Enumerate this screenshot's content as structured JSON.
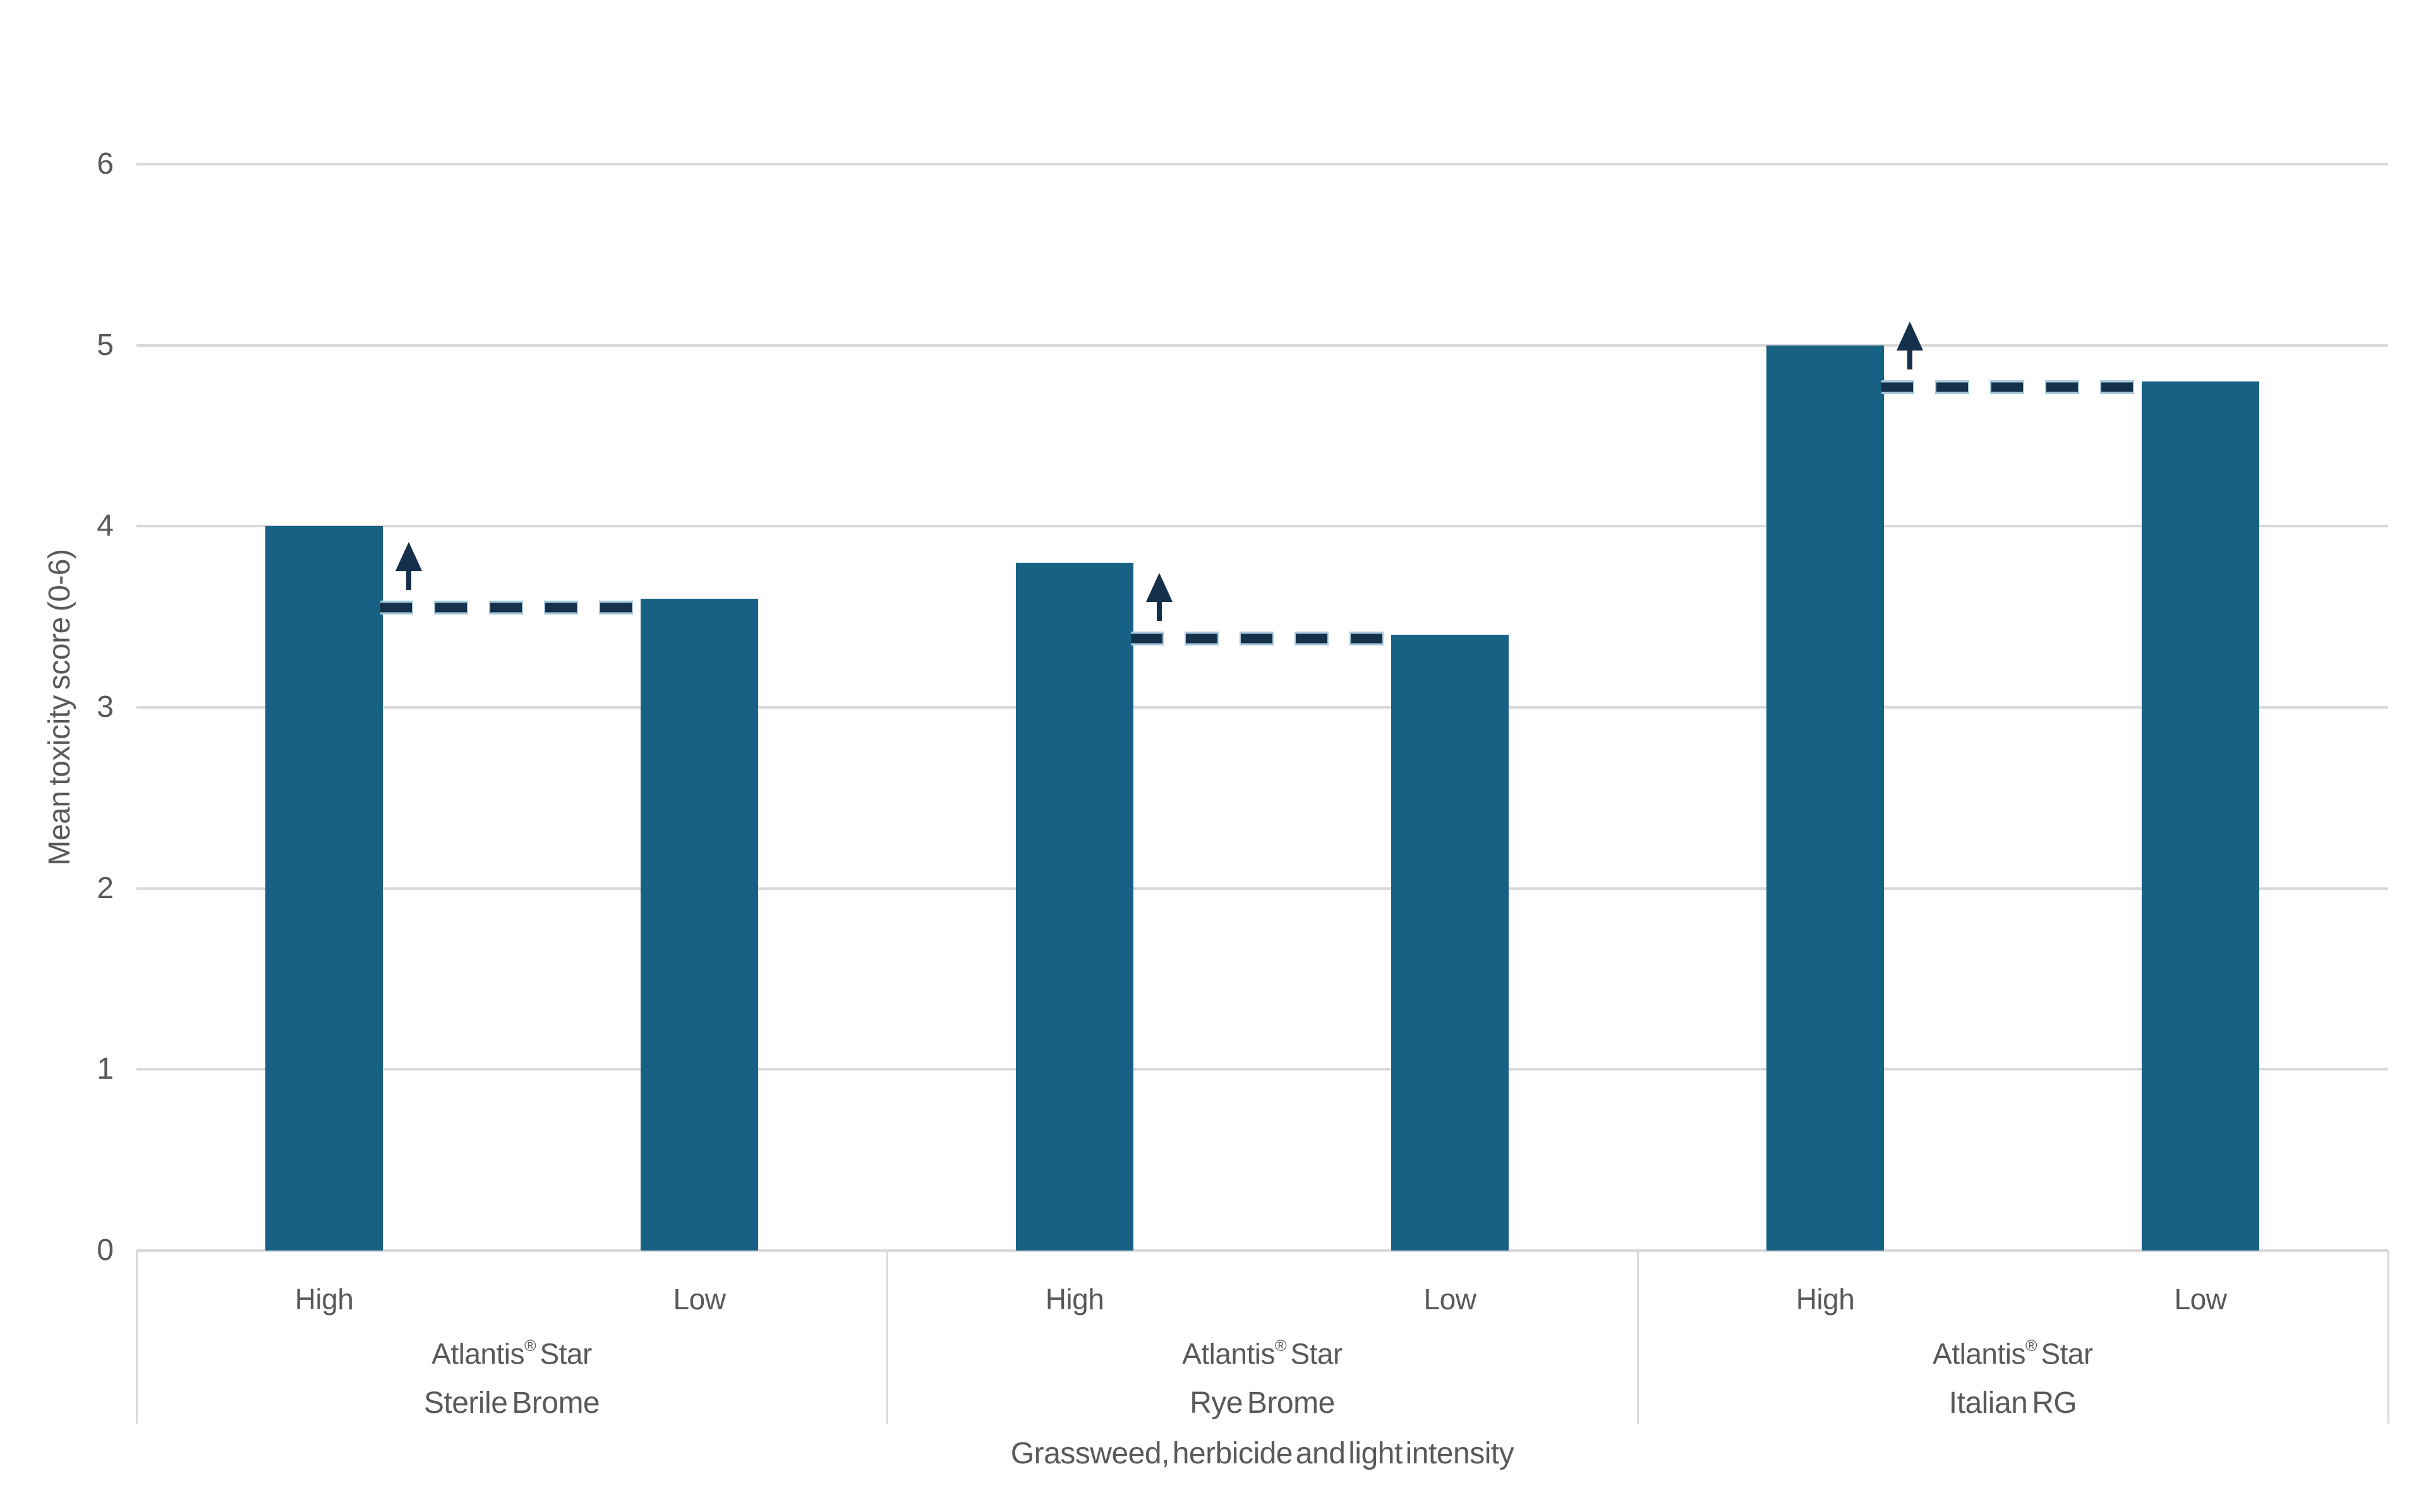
{
  "chart_data": {
    "type": "bar",
    "title": "",
    "xlabel": "Grassweed, herbicide and light intensity",
    "ylabel": "Mean toxicity score (0-6)",
    "ylim": [
      0,
      6
    ],
    "yticks": [
      0,
      1,
      2,
      3,
      4,
      5,
      6
    ],
    "grid": "horizontal-light-gray",
    "legend": "none",
    "bar_color": "#176284",
    "annotation_line_color": "#15304a",
    "annotation_outline_color": "#a8cbdc",
    "gridline_color": "#d9d9d9",
    "text_color": "#595959",
    "categories": [
      "High",
      "Low"
    ],
    "series": [
      {
        "name": "High light intensity",
        "values": [
          4.0,
          3.8,
          5.0
        ]
      },
      {
        "name": "Low light intensity",
        "values": [
          3.6,
          3.4,
          4.8
        ]
      }
    ],
    "groups": [
      {
        "name": "Sterile Brome",
        "herbicide_label": "Atlantis® Star",
        "bars": [
          {
            "label": "High",
            "value": 4.0
          },
          {
            "label": "Low",
            "value": 3.6
          }
        ],
        "dashed_reference_value": 3.55,
        "arrow": "up"
      },
      {
        "name": "Rye Brome",
        "herbicide_label": "Atlantis® Star",
        "bars": [
          {
            "label": "High",
            "value": 3.8
          },
          {
            "label": "Low",
            "value": 3.4
          }
        ],
        "dashed_reference_value": 3.38,
        "arrow": "up"
      },
      {
        "name": "Italian RG",
        "herbicide_label": "Atlantis® Star",
        "bars": [
          {
            "label": "High",
            "value": 5.0
          },
          {
            "label": "Low",
            "value": 4.8
          }
        ],
        "dashed_reference_value": 4.77,
        "arrow": "up"
      }
    ]
  }
}
